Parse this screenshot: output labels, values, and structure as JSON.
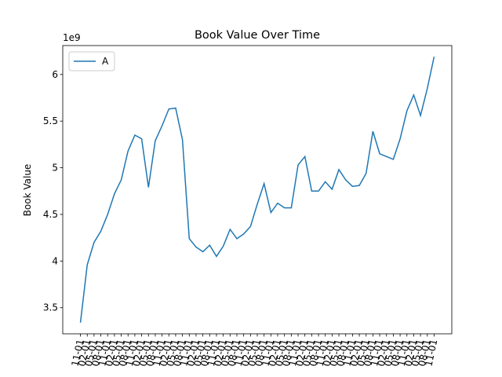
{
  "chart_data": {
    "type": "line",
    "title": "Book Value Over Time",
    "ylabel": "Book Value",
    "offset_label": "1e9",
    "categories": [
      "11-01",
      "02-01",
      "05-01",
      "08-01",
      "11-01",
      "02-01",
      "05-01",
      "08-01",
      "11-01",
      "02-01",
      "05-01",
      "08-01",
      "11-01",
      "02-01",
      "05-01",
      "08-01",
      "11-01",
      "02-01",
      "05-01",
      "08-01",
      "11-01",
      "02-01",
      "05-01",
      "08-01",
      "11-01",
      "02-01",
      "05-01",
      "08-01",
      "11-01",
      "02-01",
      "05-01",
      "08-01",
      "11-01",
      "02-01",
      "05-01",
      "08-01",
      "11-01",
      "02-01",
      "05-01",
      "08-01",
      "11-01",
      "02-01",
      "05-01",
      "08-01",
      "11-01",
      "02-01",
      "05-01",
      "08-01",
      "11-01",
      "02-01",
      "05-01",
      "08-01",
      "11-01"
    ],
    "series": [
      {
        "name": "A",
        "color": "#1f77b4",
        "values": [
          3.34,
          3.96,
          4.2,
          4.32,
          4.5,
          4.72,
          4.87,
          5.18,
          5.35,
          5.31,
          4.79,
          5.29,
          5.45,
          5.63,
          5.64,
          5.3,
          4.24,
          4.15,
          4.1,
          4.17,
          4.05,
          4.16,
          4.34,
          4.24,
          4.29,
          4.37,
          4.61,
          4.83,
          4.52,
          4.62,
          4.57,
          4.57,
          5.03,
          5.12,
          4.75,
          4.75,
          4.85,
          4.77,
          4.98,
          4.87,
          4.8,
          4.81,
          4.94,
          5.39,
          5.15,
          5.12,
          5.09,
          5.31,
          5.61,
          5.78,
          5.56,
          5.85,
          6.19
        ]
      }
    ],
    "ylim": [
      3.22,
      6.31
    ],
    "yticks": [
      3.5,
      4.0,
      4.5,
      5.0,
      5.5,
      6.0
    ],
    "grid": false,
    "legend": "upper left"
  }
}
